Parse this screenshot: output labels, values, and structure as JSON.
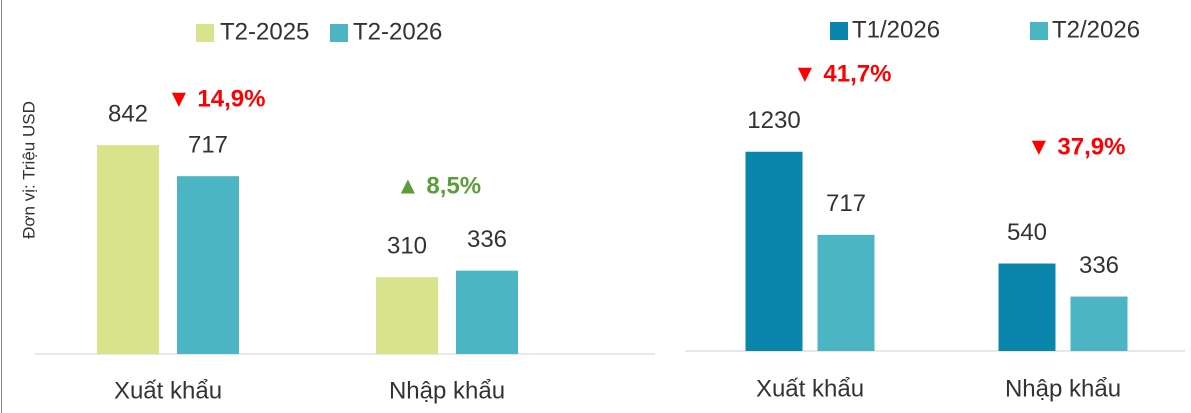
{
  "chart_data": [
    {
      "type": "bar",
      "y_label": "Đơn vị: Triệu USD",
      "categories": [
        "Xuất khẩu",
        "Nhập khẩu"
      ],
      "series": [
        {
          "name": "T2-2025",
          "color": "#d9e38b",
          "values": [
            842,
            310
          ]
        },
        {
          "name": "T2-2026",
          "color": "#4bb5c4",
          "values": [
            717,
            336
          ]
        }
      ],
      "ylim": [
        0,
        1000
      ],
      "annotations": [
        {
          "text": "▼ 14,9%",
          "color": "#ff0000"
        },
        {
          "text": "▲ 8,5%",
          "color": "#5a9e3a"
        }
      ]
    },
    {
      "type": "bar",
      "categories": [
        "Xuất khẩu",
        "Nhập khẩu"
      ],
      "series": [
        {
          "name": "T1/2026",
          "color": "#0a86ad",
          "values": [
            1230,
            540
          ]
        },
        {
          "name": "T2/2026",
          "color": "#4bb5c4",
          "values": [
            717,
            336
          ]
        }
      ],
      "ylim": [
        0,
        1500
      ],
      "annotations": [
        {
          "text": "▼ 41,7%",
          "color": "#ff0000"
        },
        {
          "text": "▼ 37,9%",
          "color": "#ff0000"
        }
      ]
    }
  ]
}
